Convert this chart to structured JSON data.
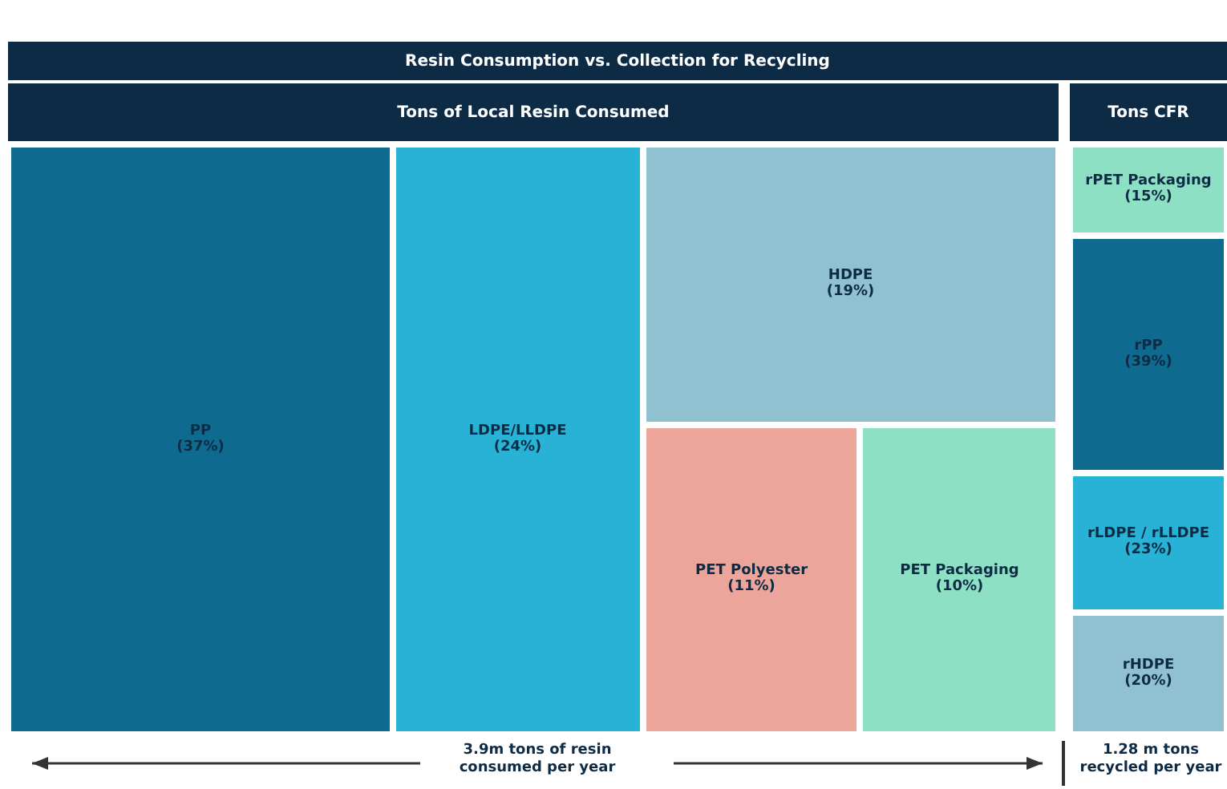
{
  "chart_data": [
    {
      "type": "other",
      "title": "Resin Consumption vs. Collection for Recycling",
      "subtitle": "Tons of Local Resin Consumed",
      "categories": [
        "PP",
        "LDPE/LLDPE",
        "HDPE",
        "PET Polyester",
        "PET Packaging"
      ],
      "values": [
        37,
        24,
        19,
        11,
        10
      ],
      "value_labels": [
        "(37%)",
        "(24%)",
        "(19%)",
        "(11%)",
        "(10%)"
      ],
      "colors": [
        "#0f6a8f",
        "#27b2d6",
        "#8fc1d1",
        "#eba59a",
        "#8de0c4"
      ],
      "annotations": [
        "3.9m tons of resin consumed per year"
      ]
    },
    {
      "type": "other",
      "title": "Tons CFR",
      "categories": [
        "rPET Packaging",
        "rPP",
        "rLDPE / rLLDPE",
        "rHDPE"
      ],
      "values": [
        15,
        39,
        23,
        20
      ],
      "value_labels": [
        "(15%)",
        "(39%)",
        "(23%)",
        "(20%)"
      ],
      "colors": [
        "#8de0c4",
        "#0f6a8f",
        "#27b2d6",
        "#8fc1d1"
      ],
      "annotations": [
        "1.28 m tons recycled per year"
      ]
    }
  ]
}
